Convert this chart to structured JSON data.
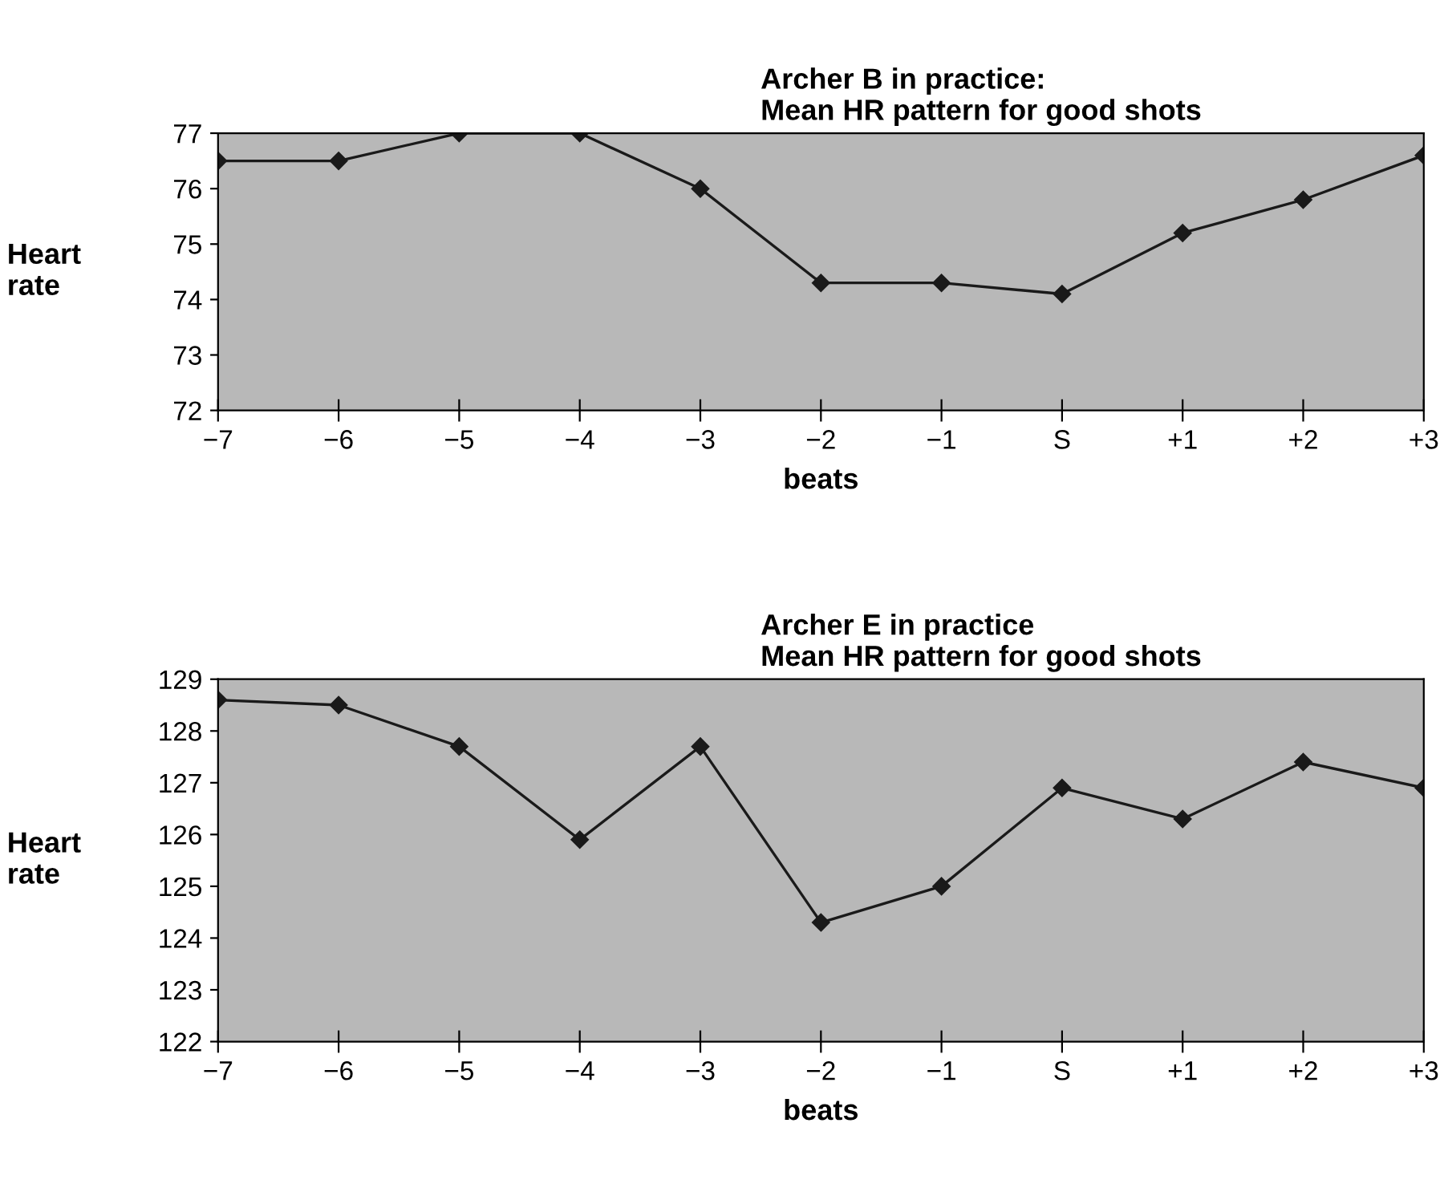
{
  "chart_data": [
    {
      "type": "line",
      "title": "Archer B in practice:\nMean HR pattern for good shots",
      "xlabel": "beats",
      "ylabel": "Heart\nrate",
      "categories": [
        "−7",
        "−6",
        "−5",
        "−4",
        "−3",
        "−2",
        "−1",
        "S",
        "+1",
        "+2",
        "+3"
      ],
      "series": [
        {
          "color": "#1a1a1a",
          "values": [
            76.5,
            76.5,
            77.0,
            77.0,
            76.0,
            74.3,
            74.3,
            74.1,
            75.2,
            75.8,
            76.6
          ]
        }
      ],
      "ylim": [
        72,
        77
      ],
      "yticks": [
        72,
        73,
        74,
        75,
        76,
        77
      ],
      "grid": false,
      "legend": false,
      "marker": "diamond",
      "line_style": "solid"
    },
    {
      "type": "line",
      "title": "Archer E in practice\nMean HR pattern for good shots",
      "xlabel": "beats",
      "ylabel": "Heart\nrate",
      "categories": [
        "−7",
        "−6",
        "−5",
        "−4",
        "−3",
        "−2",
        "−1",
        "S",
        "+1",
        "+2",
        "+3"
      ],
      "series": [
        {
          "color": "#1a1a1a",
          "values": [
            128.6,
            128.5,
            127.7,
            125.9,
            127.7,
            124.3,
            125.0,
            126.9,
            126.3,
            127.4,
            126.9
          ]
        }
      ],
      "ylim": [
        122,
        129
      ],
      "yticks": [
        122,
        123,
        124,
        125,
        126,
        127,
        128,
        129
      ],
      "grid": false,
      "legend": false,
      "marker": "diamond",
      "line_style": "solid"
    }
  ]
}
